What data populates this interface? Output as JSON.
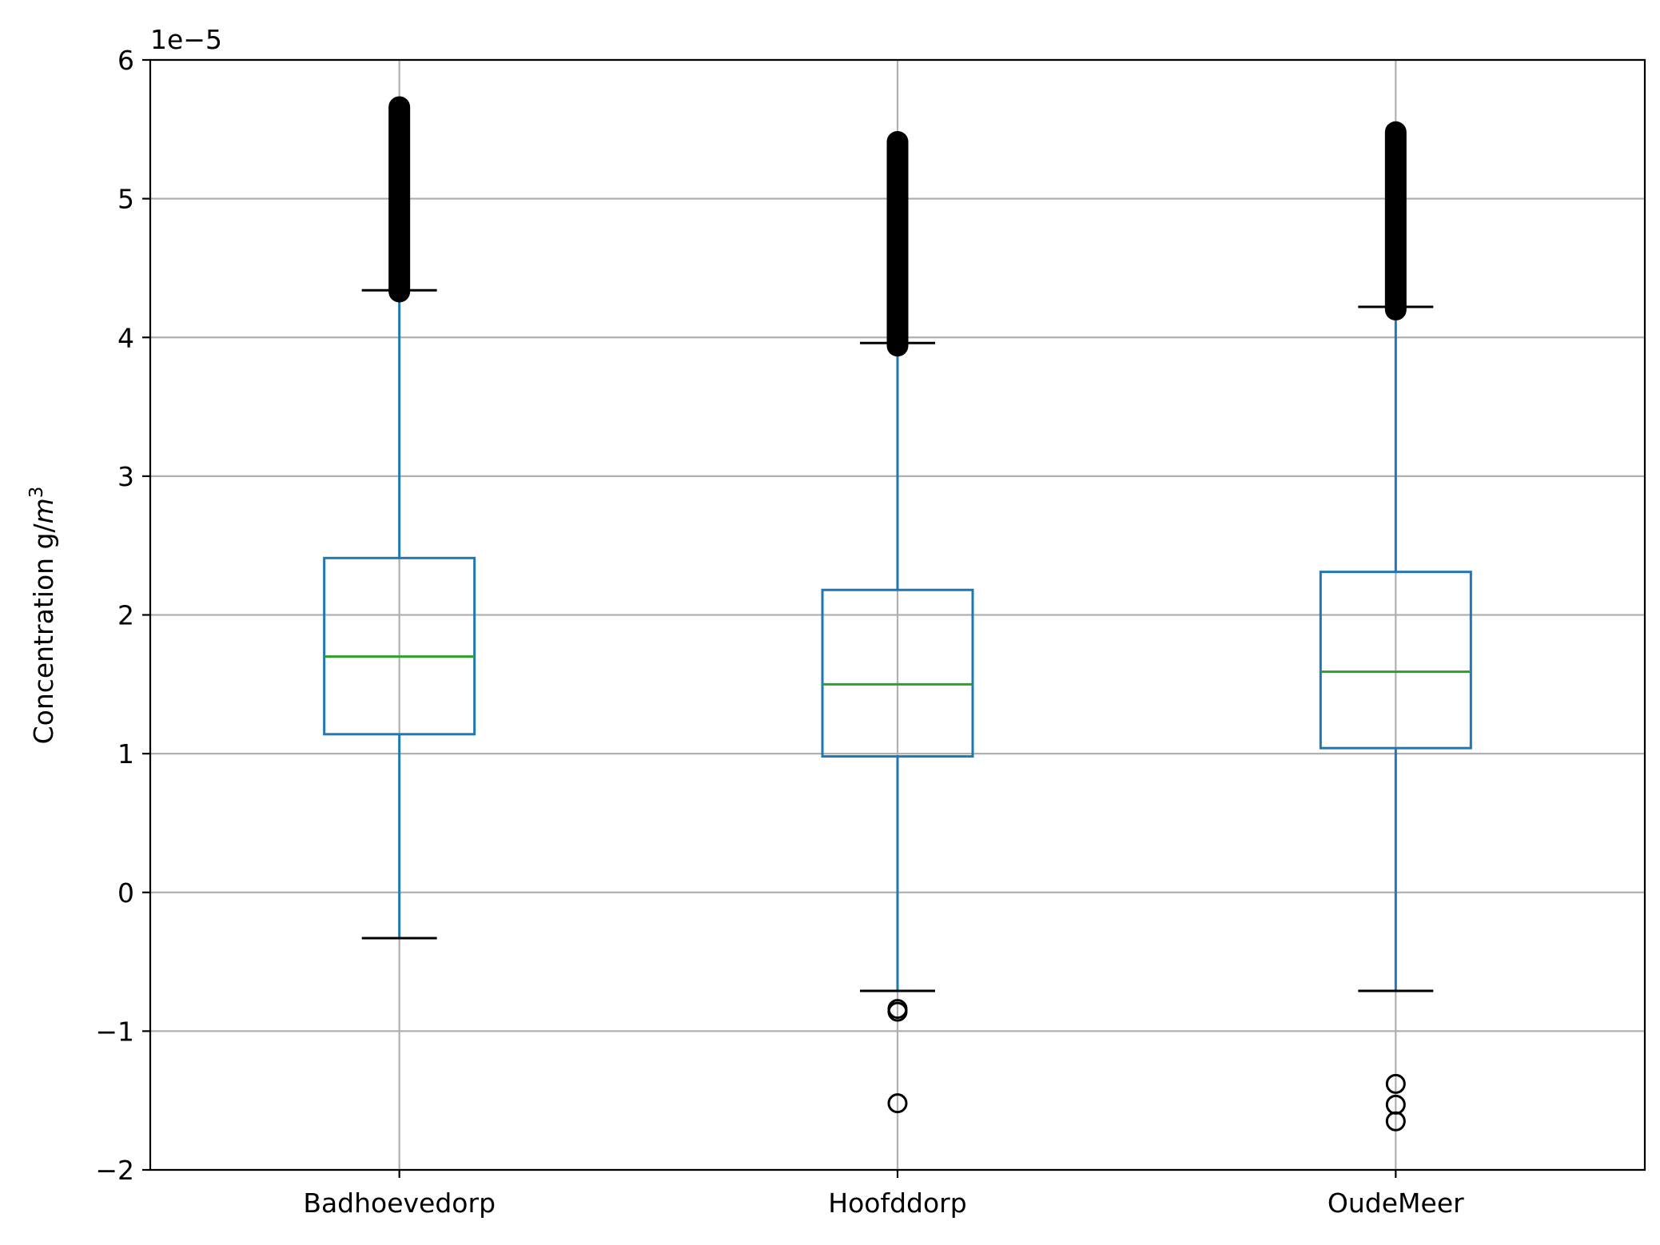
{
  "chart_data": {
    "type": "box",
    "title": "",
    "xlabel": "",
    "ylabel": "Concentration g/",
    "ylabel_unit": "m",
    "ylabel_unit_exp": "3",
    "offset_label": "1e−5",
    "ylim": [
      -2,
      6
    ],
    "yticks": [
      -2,
      -1,
      0,
      1,
      2,
      3,
      4,
      5,
      6
    ],
    "ytick_labels": [
      "−2",
      "−1",
      "0",
      "1",
      "2",
      "3",
      "4",
      "5",
      "6"
    ],
    "grid": true,
    "colors": {
      "box": "#1f77b4",
      "median": "#2ca02c",
      "caps_and_fliers": "#000000",
      "grid": "#b0b0b0"
    },
    "categories": [
      "Badhoevedorp",
      "Hoofddorp",
      "OudeMeer"
    ],
    "boxes": [
      {
        "category": "Badhoevedorp",
        "whisker_low": -0.33,
        "q1": 1.14,
        "median": 1.7,
        "q3": 2.41,
        "whisker_high": 4.34,
        "upper_fliers_range": [
          4.33,
          5.66
        ],
        "fliers_low": []
      },
      {
        "category": "Hoofddorp",
        "whisker_low": -0.71,
        "q1": 0.98,
        "median": 1.5,
        "q3": 2.18,
        "whisker_high": 3.96,
        "upper_fliers_range": [
          3.94,
          5.41
        ],
        "fliers_low": [
          -0.84,
          -0.86,
          -1.52
        ]
      },
      {
        "category": "OudeMeer",
        "whisker_low": -0.71,
        "q1": 1.04,
        "median": 1.59,
        "q3": 2.31,
        "whisker_high": 4.22,
        "upper_fliers_range": [
          4.2,
          5.48
        ],
        "fliers_low": [
          -1.38,
          -1.53,
          -1.65
        ]
      }
    ]
  }
}
